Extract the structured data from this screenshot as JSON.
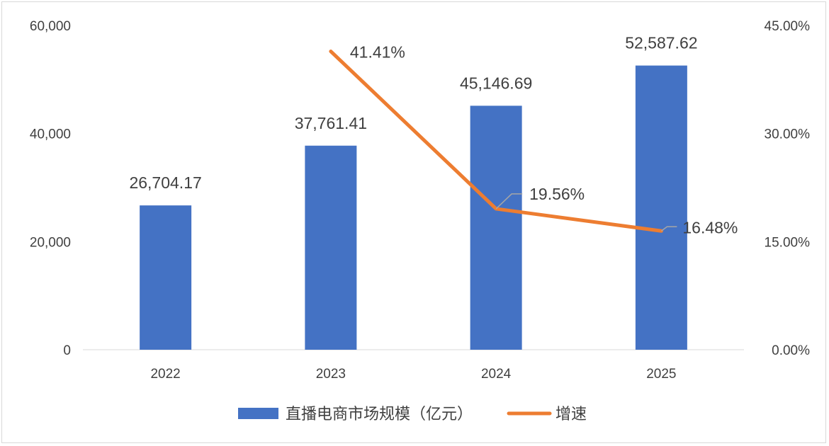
{
  "chart_data": {
    "type": "bar+line",
    "categories": [
      "2022",
      "2023",
      "2024",
      "2025"
    ],
    "series": [
      {
        "name": "直播电商市场规模（亿元）",
        "type": "bar",
        "axis": "left",
        "color": "#4472C4",
        "values": [
          26704.17,
          37761.41,
          45146.69,
          52587.62
        ],
        "labels": [
          "26,704.17",
          "37,761.41",
          "45,146.69",
          "52,587.62"
        ]
      },
      {
        "name": "增速",
        "type": "line",
        "axis": "right",
        "color": "#ED7D31",
        "values": [
          null,
          41.41,
          19.56,
          16.48
        ],
        "labels": [
          "",
          "41.41%",
          "19.56%",
          "16.48%"
        ]
      }
    ],
    "left_axis": {
      "ylim": [
        0,
        60000
      ],
      "ticks": [
        0,
        20000,
        40000,
        60000
      ],
      "tick_labels": [
        "0",
        "20,000",
        "40,000",
        "60,000"
      ]
    },
    "right_axis": {
      "ylim": [
        0,
        45
      ],
      "ticks": [
        0,
        15,
        30,
        45
      ],
      "tick_labels": [
        "0.00%",
        "15.00%",
        "30.00%",
        "45.00%"
      ]
    },
    "grid": false,
    "legend": "bottom",
    "title": ""
  }
}
